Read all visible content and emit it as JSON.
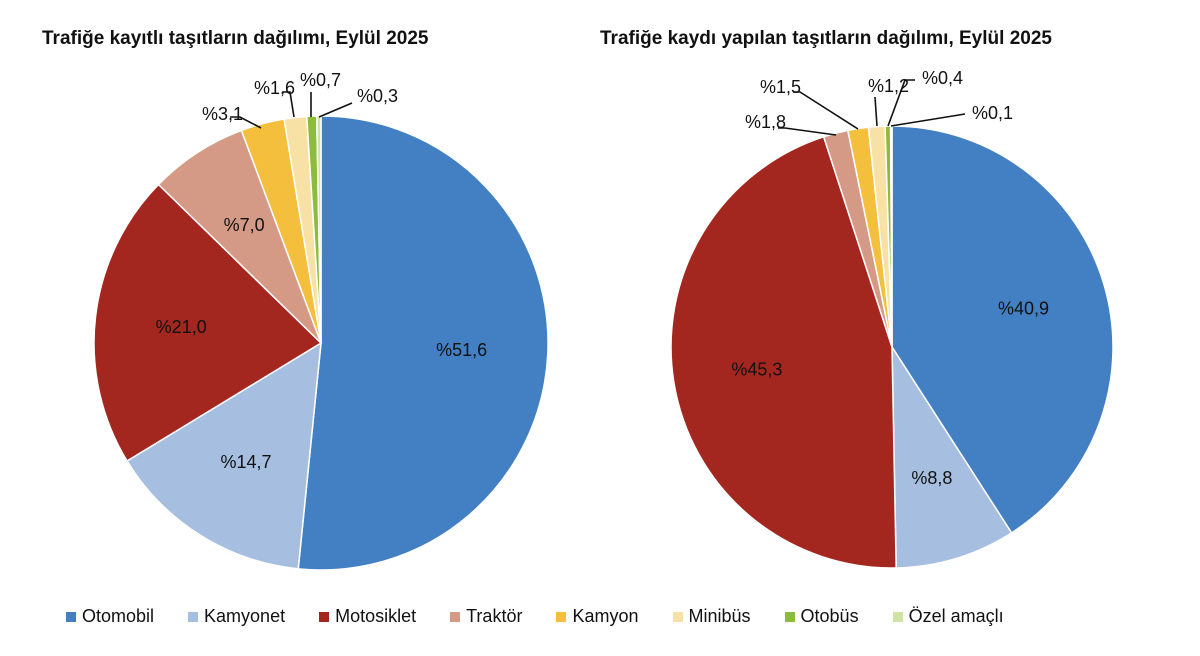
{
  "colors": {
    "Otomobil": "#4380c3",
    "Kamyonet": "#a6bfe1",
    "Motosiklet": "#a4271f",
    "Traktör": "#d49a85",
    "Kamyon": "#f4bf3c",
    "Minibüs": "#f8e1a5",
    "Otobüs": "#8cbc3c",
    "Özel amaçlı": "#cfe4a3"
  },
  "legend": [
    "Otomobil",
    "Kamyonet",
    "Motosiklet",
    "Traktör",
    "Kamyon",
    "Minibüs",
    "Otobüs",
    "Özel amaçlı"
  ],
  "chart_data": [
    {
      "type": "pie",
      "title": "Trafiğe kayıtlı taşıtların dağılımı, Eylül 2025",
      "categories": [
        "Otomobil",
        "Kamyonet",
        "Motosiklet",
        "Traktör",
        "Kamyon",
        "Minibüs",
        "Otobüs",
        "Özel amaçlı"
      ],
      "values": [
        51.6,
        14.7,
        21.0,
        7.0,
        3.1,
        1.6,
        0.7,
        0.3
      ],
      "labels": [
        "%51,6",
        "%14,7",
        "%21,0",
        "%7,0",
        "%3,1",
        "%1,6",
        "%0,7",
        "%0,3"
      ]
    },
    {
      "type": "pie",
      "title": "Trafiğe kaydı yapılan taşıtların dağılımı, Eylül 2025",
      "categories": [
        "Otomobil",
        "Kamyonet",
        "Motosiklet",
        "Traktör",
        "Kamyon",
        "Minibüs",
        "Otobüs",
        "Özel amaçlı"
      ],
      "values": [
        40.9,
        8.8,
        45.3,
        1.8,
        1.5,
        1.2,
        0.4,
        0.1
      ],
      "labels": [
        "%40,9",
        "%8,8",
        "%45,3",
        "%1,8",
        "%1,5",
        "%1,2",
        "%0,4",
        "%0,1"
      ]
    }
  ]
}
